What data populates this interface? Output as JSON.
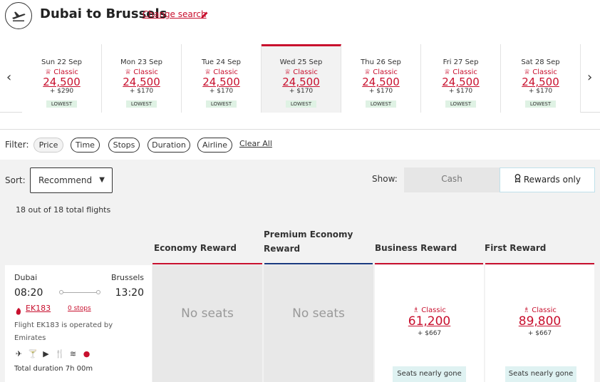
{
  "header": {
    "title": "Dubai to Brussels",
    "change_search": "Change search"
  },
  "dates": [
    {
      "label": "Sun 22 Sep",
      "tier": "Classic",
      "points": "24,500",
      "cash": "+ $290",
      "badge": "LOWEST"
    },
    {
      "label": "Mon 23 Sep",
      "tier": "Classic",
      "points": "24,500",
      "cash": "+ $170",
      "badge": "LOWEST"
    },
    {
      "label": "Tue 24 Sep",
      "tier": "Classic",
      "points": "24,500",
      "cash": "+ $170",
      "badge": "LOWEST"
    },
    {
      "label": "Wed 25 Sep",
      "tier": "Classic",
      "points": "24,500",
      "cash": "+ $170",
      "badge": "LOWEST",
      "selected": true
    },
    {
      "label": "Thu 26 Sep",
      "tier": "Classic",
      "points": "24,500",
      "cash": "+ $170",
      "badge": "LOWEST"
    },
    {
      "label": "Fri 27 Sep",
      "tier": "Classic",
      "points": "24,500",
      "cash": "+ $170",
      "badge": "LOWEST"
    },
    {
      "label": "Sat 28 Sep",
      "tier": "Classic",
      "points": "24,500",
      "cash": "+ $170",
      "badge": "LOWEST"
    }
  ],
  "filter": {
    "label": "Filter:",
    "chips": [
      "Price",
      "Time",
      "Stops",
      "Duration",
      "Airline"
    ],
    "clear_all": "Clear All"
  },
  "sort": {
    "label": "Sort:",
    "value": "Recommend"
  },
  "show": {
    "label": "Show:",
    "cash": "Cash",
    "rewards": "Rewards only",
    "selected": "rewards"
  },
  "results_count": "18 out of 18 total flights",
  "columns": {
    "economy": "Economy Reward",
    "premium_economy_1": "Premium Economy",
    "premium_economy_2": "Reward",
    "business": "Business Reward",
    "first": "First Reward"
  },
  "flight": {
    "origin": "Dubai",
    "destination": "Brussels",
    "depart": "08:20",
    "arrive": "13:20",
    "number": "EK183",
    "stops": "0 stops",
    "operated_by": "Flight EK183 is operated by Emirates",
    "duration": "Total duration 7h 00m",
    "amenity_icons": [
      "aircraft-777-icon",
      "drink-icon",
      "entertainment-icon",
      "dining-icon",
      "flat-bed-icon",
      "wifi-icon"
    ],
    "economy": "No seats",
    "premium_economy": "No seats",
    "business": {
      "tier": "Classic",
      "points": "61,200",
      "cash": "+ $667",
      "availability": "Seats nearly gone"
    },
    "first": {
      "tier": "Classic",
      "points": "89,800",
      "cash": "+ $667",
      "availability": "Seats nearly gone"
    }
  },
  "colors": {
    "accent": "#c8102e",
    "premium_line": "#1a3a80",
    "lowest_badge": "#dff2e4",
    "availability_badge": "#dff2f2"
  }
}
